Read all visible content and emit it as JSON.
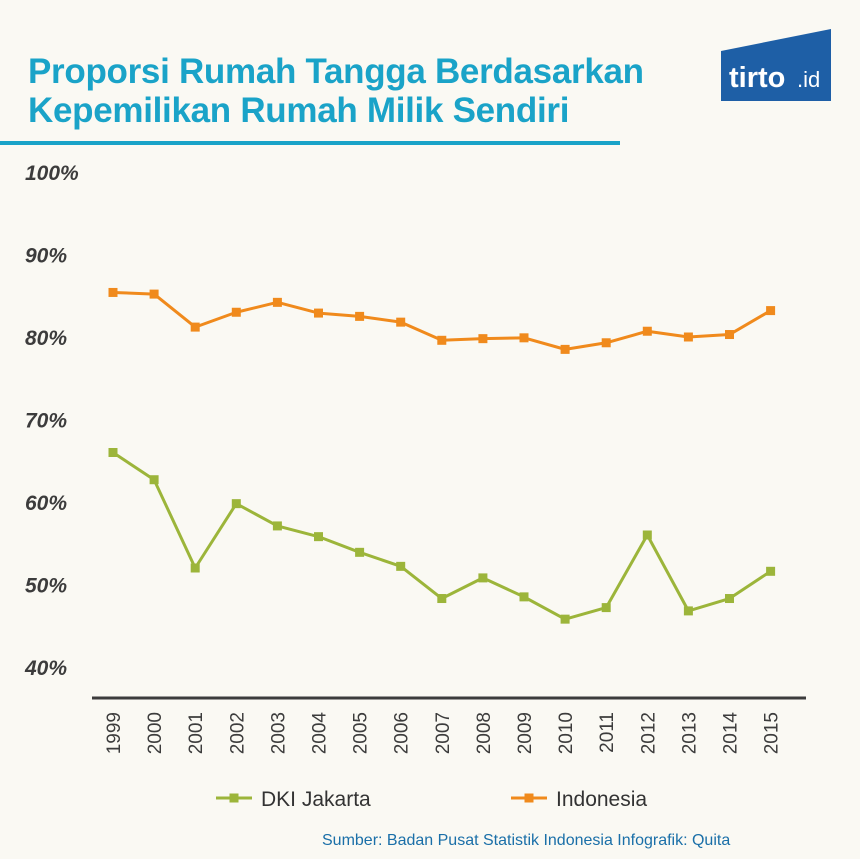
{
  "header": {
    "title_line1": "Proporsi Rumah Tangga Berdasarkan",
    "title_line2": "Kepemilikan Rumah Milik Sendiri",
    "logo_text": "tirto",
    "logo_suffix": ".id"
  },
  "footer": {
    "source": "Sumber: Badan Pusat Statistik Indonesia  Infografik: Quita"
  },
  "colors": {
    "title": "#1aa3c8",
    "jakarta": "#9cb53a",
    "indonesia": "#f08a1c",
    "axis": "#3c3c3c",
    "logo_bg": "#1e5fa6",
    "source": "#1a6fa8"
  },
  "chart_data": {
    "type": "line",
    "title": "Proporsi Rumah Tangga Berdasarkan Kepemilikan Rumah Milik Sendiri",
    "xlabel": "",
    "ylabel": "",
    "ylim": [
      40,
      100
    ],
    "yticks": [
      100,
      90,
      80,
      70,
      60,
      50,
      40
    ],
    "ytick_labels": [
      "100%",
      "90%",
      "80%",
      "70%",
      "60%",
      "50%",
      "40%"
    ],
    "grid": false,
    "legend_position": "bottom",
    "categories": [
      "1999",
      "2000",
      "2001",
      "2002",
      "2003",
      "2004",
      "2005",
      "2006",
      "2007",
      "2008",
      "2009",
      "2010",
      "2011",
      "2012",
      "2013",
      "2014",
      "2015"
    ],
    "series": [
      {
        "name": "DKI Jakarta",
        "color": "#9cb53a",
        "values": [
          66.0,
          62.7,
          52.0,
          59.8,
          57.1,
          55.8,
          53.9,
          52.2,
          48.3,
          50.8,
          48.5,
          45.8,
          47.2,
          56.0,
          46.8,
          48.3,
          51.6
        ]
      },
      {
        "name": "Indonesia",
        "color": "#f08a1c",
        "values": [
          85.4,
          85.2,
          81.2,
          83.0,
          84.2,
          82.9,
          82.5,
          81.8,
          79.6,
          79.8,
          79.9,
          78.5,
          79.3,
          80.7,
          80.0,
          80.3,
          83.2
        ]
      }
    ]
  }
}
